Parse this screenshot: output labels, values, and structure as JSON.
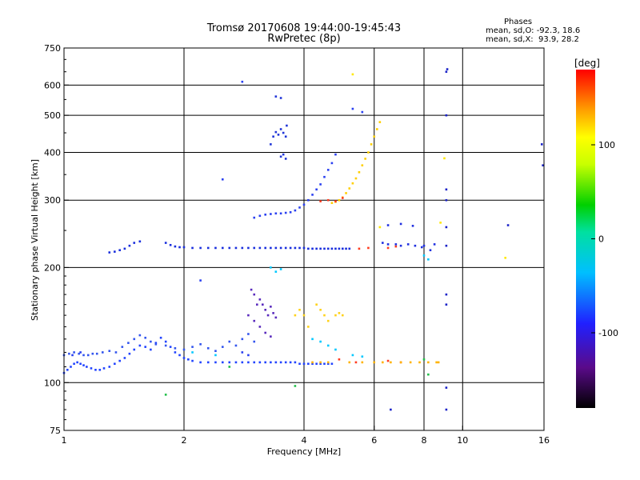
{
  "header": {
    "title": "Tromsø 20170608 19:44:00-19:45:43",
    "subtitle": "RwPretec (8p)"
  },
  "phases": {
    "heading": "Phases",
    "line_o": "mean, sd,O: -92.3, 18.6",
    "line_x": "mean, sd,X:  93.9, 28.2"
  },
  "chart_data": {
    "type": "scatter",
    "xlabel": "Frequency [MHz]",
    "ylabel": "Stationary phase Virtual Height [km]",
    "x_scale": "log",
    "y_scale": "log",
    "xlim": [
      1,
      16
    ],
    "ylim": [
      75,
      750
    ],
    "x_ticks": [
      1,
      2,
      4,
      6,
      8,
      10,
      16
    ],
    "x_grid": [
      2,
      4,
      6,
      8,
      10
    ],
    "y_ticks": [
      75,
      100,
      200,
      300,
      400,
      500,
      600,
      750
    ],
    "y_grid": [
      100,
      200,
      300,
      400,
      500,
      600
    ],
    "grid": true,
    "colorbar": {
      "label": "[deg]",
      "range": [
        -180,
        180
      ],
      "ticks": [
        100,
        0,
        -100
      ],
      "colormap": "rainbow"
    },
    "series": [
      {
        "color": "#2244ff",
        "points": [
          [
            1.0,
            106
          ],
          [
            1.02,
            108
          ],
          [
            1.04,
            110
          ],
          [
            1.06,
            112
          ],
          [
            1.08,
            113
          ],
          [
            1.1,
            112
          ],
          [
            1.12,
            111
          ],
          [
            1.14,
            110
          ],
          [
            1.17,
            109
          ],
          [
            1.2,
            108
          ],
          [
            1.23,
            108
          ],
          [
            1.26,
            109
          ],
          [
            1.3,
            110
          ],
          [
            1.34,
            112
          ],
          [
            1.38,
            114
          ],
          [
            1.42,
            116
          ],
          [
            1.46,
            119
          ],
          [
            1.5,
            122
          ],
          [
            1.55,
            125
          ],
          [
            1.6,
            124
          ],
          [
            1.65,
            122
          ],
          [
            1.7,
            127
          ],
          [
            1.75,
            131
          ],
          [
            1.8,
            128
          ],
          [
            1.85,
            124
          ],
          [
            1.9,
            120
          ],
          [
            1.95,
            118
          ],
          [
            2.0,
            116
          ],
          [
            2.05,
            115
          ],
          [
            2.1,
            114
          ],
          [
            2.2,
            113
          ],
          [
            2.3,
            113
          ],
          [
            2.4,
            113
          ],
          [
            2.5,
            113
          ],
          [
            2.6,
            113
          ],
          [
            2.7,
            113
          ],
          [
            2.8,
            113
          ],
          [
            2.9,
            113
          ],
          [
            3.0,
            113
          ],
          [
            3.1,
            113
          ],
          [
            3.2,
            113
          ],
          [
            3.3,
            113
          ],
          [
            3.4,
            113
          ],
          [
            3.5,
            113
          ],
          [
            3.6,
            113
          ],
          [
            3.7,
            113
          ],
          [
            3.8,
            113
          ],
          [
            3.9,
            112
          ],
          [
            4.0,
            112
          ],
          [
            4.1,
            112
          ],
          [
            4.2,
            112
          ],
          [
            4.3,
            112
          ],
          [
            4.4,
            112
          ],
          [
            4.5,
            112
          ],
          [
            4.6,
            112
          ],
          [
            4.7,
            112
          ]
        ]
      },
      {
        "color": "#3355ee",
        "points": [
          [
            1.0,
            118
          ],
          [
            1.03,
            119
          ],
          [
            1.06,
            120
          ],
          [
            1.09,
            119
          ],
          [
            1.12,
            118
          ],
          [
            1.15,
            118
          ],
          [
            1.18,
            119
          ],
          [
            1.21,
            119
          ],
          [
            1.25,
            120
          ],
          [
            1.3,
            121
          ],
          [
            1.35,
            120
          ],
          [
            1.4,
            124
          ],
          [
            1.45,
            127
          ],
          [
            1.5,
            130
          ],
          [
            1.55,
            133
          ],
          [
            1.6,
            131
          ],
          [
            1.65,
            128
          ],
          [
            1.7,
            126
          ],
          [
            1.8,
            125
          ],
          [
            1.9,
            123
          ],
          [
            2.0,
            122
          ],
          [
            2.1,
            124
          ],
          [
            2.2,
            126
          ],
          [
            2.3,
            123
          ],
          [
            2.4,
            121
          ],
          [
            2.5,
            124
          ],
          [
            2.6,
            128
          ],
          [
            2.7,
            125
          ],
          [
            2.8,
            130
          ],
          [
            2.9,
            134
          ],
          [
            3.0,
            128
          ]
        ]
      },
      {
        "color": "#1a2fdd",
        "points": [
          [
            1.3,
            219
          ],
          [
            1.34,
            220
          ],
          [
            1.38,
            222
          ],
          [
            1.42,
            224
          ],
          [
            1.46,
            228
          ],
          [
            1.5,
            232
          ],
          [
            1.55,
            234
          ],
          [
            1.8,
            232
          ],
          [
            1.85,
            229
          ],
          [
            1.9,
            227
          ],
          [
            1.95,
            226
          ],
          [
            2.0,
            226
          ],
          [
            2.1,
            225
          ],
          [
            2.2,
            225
          ],
          [
            2.3,
            225
          ],
          [
            2.4,
            225
          ],
          [
            2.5,
            225
          ],
          [
            2.6,
            225
          ],
          [
            2.7,
            225
          ],
          [
            2.8,
            225
          ],
          [
            2.9,
            225
          ],
          [
            3.0,
            225
          ],
          [
            3.1,
            225
          ],
          [
            3.2,
            225
          ],
          [
            3.3,
            225
          ],
          [
            3.4,
            225
          ],
          [
            3.5,
            225
          ],
          [
            3.6,
            225
          ],
          [
            3.7,
            225
          ],
          [
            3.8,
            225
          ],
          [
            3.9,
            225
          ],
          [
            4.0,
            225
          ],
          [
            4.1,
            224
          ],
          [
            4.2,
            224
          ],
          [
            4.3,
            224
          ],
          [
            4.4,
            224
          ],
          [
            4.5,
            224
          ],
          [
            4.6,
            224
          ],
          [
            4.7,
            224
          ],
          [
            4.8,
            224
          ],
          [
            4.9,
            224
          ],
          [
            5.0,
            224
          ],
          [
            5.1,
            224
          ],
          [
            5.2,
            224
          ]
        ]
      },
      {
        "color": "#2a40f0",
        "points": [
          [
            3.0,
            270
          ],
          [
            3.1,
            273
          ],
          [
            3.2,
            275
          ],
          [
            3.3,
            276
          ],
          [
            3.4,
            277
          ],
          [
            3.5,
            277
          ],
          [
            3.6,
            278
          ],
          [
            3.7,
            279
          ],
          [
            3.8,
            282
          ],
          [
            3.9,
            287
          ],
          [
            4.0,
            292
          ],
          [
            4.1,
            300
          ],
          [
            4.2,
            310
          ],
          [
            4.3,
            320
          ],
          [
            4.4,
            330
          ],
          [
            4.5,
            345
          ],
          [
            4.6,
            360
          ],
          [
            4.7,
            375
          ],
          [
            4.8,
            395
          ]
        ]
      },
      {
        "color": "#2035d8",
        "points": [
          [
            3.3,
            420
          ],
          [
            3.35,
            440
          ],
          [
            3.4,
            452
          ],
          [
            3.45,
            445
          ],
          [
            3.5,
            460
          ],
          [
            3.55,
            450
          ],
          [
            3.6,
            440
          ],
          [
            3.62,
            470
          ],
          [
            3.5,
            390
          ],
          [
            3.55,
            395
          ],
          [
            3.6,
            385
          ],
          [
            3.4,
            560
          ],
          [
            3.5,
            555
          ]
        ]
      },
      {
        "color": "#5a2bbd",
        "points": [
          [
            2.9,
            150
          ],
          [
            3.0,
            145
          ],
          [
            3.05,
            160
          ],
          [
            3.1,
            165
          ],
          [
            3.15,
            160
          ],
          [
            3.2,
            155
          ],
          [
            3.25,
            150
          ],
          [
            3.3,
            158
          ],
          [
            3.35,
            152
          ],
          [
            3.4,
            148
          ],
          [
            3.1,
            140
          ],
          [
            3.2,
            135
          ],
          [
            3.3,
            132
          ],
          [
            2.95,
            175
          ],
          [
            3.0,
            170
          ]
        ]
      },
      {
        "color": "#ffd21a",
        "points": [
          [
            4.3,
            160
          ],
          [
            4.4,
            155
          ],
          [
            4.5,
            150
          ],
          [
            4.6,
            145
          ],
          [
            4.8,
            150
          ],
          [
            4.9,
            152
          ],
          [
            5.0,
            150
          ],
          [
            3.8,
            150
          ],
          [
            3.9,
            155
          ],
          [
            4.0,
            150
          ],
          [
            4.1,
            140
          ]
        ]
      },
      {
        "color": "#ffcf00",
        "points": [
          [
            4.7,
            295
          ],
          [
            4.8,
            297
          ],
          [
            4.9,
            300
          ],
          [
            5.0,
            305
          ],
          [
            5.1,
            313
          ],
          [
            5.2,
            322
          ],
          [
            5.3,
            332
          ],
          [
            5.4,
            342
          ],
          [
            5.5,
            355
          ],
          [
            5.6,
            370
          ],
          [
            5.7,
            385
          ],
          [
            5.8,
            400
          ],
          [
            5.9,
            420
          ],
          [
            6.0,
            440
          ],
          [
            6.1,
            460
          ],
          [
            6.2,
            480
          ]
        ]
      },
      {
        "color": "#ff3b1f",
        "points": [
          [
            4.4,
            298
          ],
          [
            4.6,
            300
          ],
          [
            4.8,
            298
          ],
          [
            5.0,
            304
          ],
          [
            5.5,
            224
          ],
          [
            5.8,
            225
          ],
          [
            6.5,
            225
          ],
          [
            6.8,
            227
          ],
          [
            4.9,
            115
          ],
          [
            5.4,
            113
          ],
          [
            6.5,
            114
          ],
          [
            7.0,
            113
          ]
        ]
      },
      {
        "color": "#ffb300",
        "points": [
          [
            4.2,
            113
          ],
          [
            4.4,
            113
          ],
          [
            4.6,
            113
          ],
          [
            5.2,
            113
          ],
          [
            5.6,
            113
          ],
          [
            6.0,
            113
          ],
          [
            6.3,
            113
          ],
          [
            6.6,
            113
          ],
          [
            7.0,
            113
          ],
          [
            7.4,
            113
          ],
          [
            7.8,
            113
          ],
          [
            8.2,
            113
          ],
          [
            8.6,
            113
          ],
          [
            8.7,
            113
          ]
        ]
      },
      {
        "color": "#00c8ff",
        "points": [
          [
            3.3,
            200
          ],
          [
            3.4,
            195
          ],
          [
            3.5,
            198
          ],
          [
            4.2,
            130
          ],
          [
            4.4,
            128
          ],
          [
            4.6,
            125
          ],
          [
            4.8,
            122
          ],
          [
            5.3,
            118
          ],
          [
            5.6,
            117
          ],
          [
            8.0,
            215
          ],
          [
            8.2,
            210
          ],
          [
            2.1,
            120
          ],
          [
            2.4,
            118
          ]
        ]
      },
      {
        "color": "#22c04a",
        "points": [
          [
            1.8,
            93
          ],
          [
            2.6,
            110
          ],
          [
            3.8,
            98
          ],
          [
            8.0,
            115
          ],
          [
            8.2,
            105
          ]
        ]
      },
      {
        "color": "#2030e0",
        "points": [
          [
            6.5,
            258
          ],
          [
            6.8,
            230
          ],
          [
            7.0,
            228
          ],
          [
            7.3,
            230
          ],
          [
            7.6,
            228
          ],
          [
            7.9,
            226
          ],
          [
            8.0,
            228
          ],
          [
            8.3,
            222
          ],
          [
            8.5,
            230
          ],
          [
            7.0,
            260
          ],
          [
            7.5,
            257
          ],
          [
            6.3,
            232
          ],
          [
            6.5,
            230
          ]
        ]
      },
      {
        "color": "#1a22c8",
        "points": [
          [
            9.1,
            650
          ],
          [
            9.15,
            660
          ],
          [
            9.1,
            500
          ],
          [
            9.1,
            320
          ],
          [
            9.1,
            300
          ],
          [
            9.1,
            255
          ],
          [
            9.1,
            228
          ],
          [
            9.1,
            170
          ],
          [
            9.1,
            160
          ],
          [
            9.1,
            97
          ],
          [
            9.1,
            85
          ],
          [
            6.6,
            85
          ],
          [
            15.8,
            420
          ],
          [
            15.9,
            370
          ],
          [
            13.0,
            258
          ]
        ]
      },
      {
        "color": "#ffe800",
        "points": [
          [
            5.3,
            640
          ],
          [
            12.8,
            212
          ],
          [
            9.0,
            386
          ],
          [
            6.2,
            255
          ],
          [
            8.8,
            262
          ]
        ]
      },
      {
        "color": "#2a40f0",
        "points": [
          [
            2.8,
            612
          ],
          [
            2.5,
            340
          ],
          [
            5.3,
            520
          ],
          [
            5.6,
            510
          ],
          [
            2.2,
            185
          ],
          [
            2.8,
            120
          ],
          [
            2.9,
            118
          ],
          [
            1.1,
            120
          ],
          [
            1.05,
            118
          ]
        ]
      }
    ]
  }
}
